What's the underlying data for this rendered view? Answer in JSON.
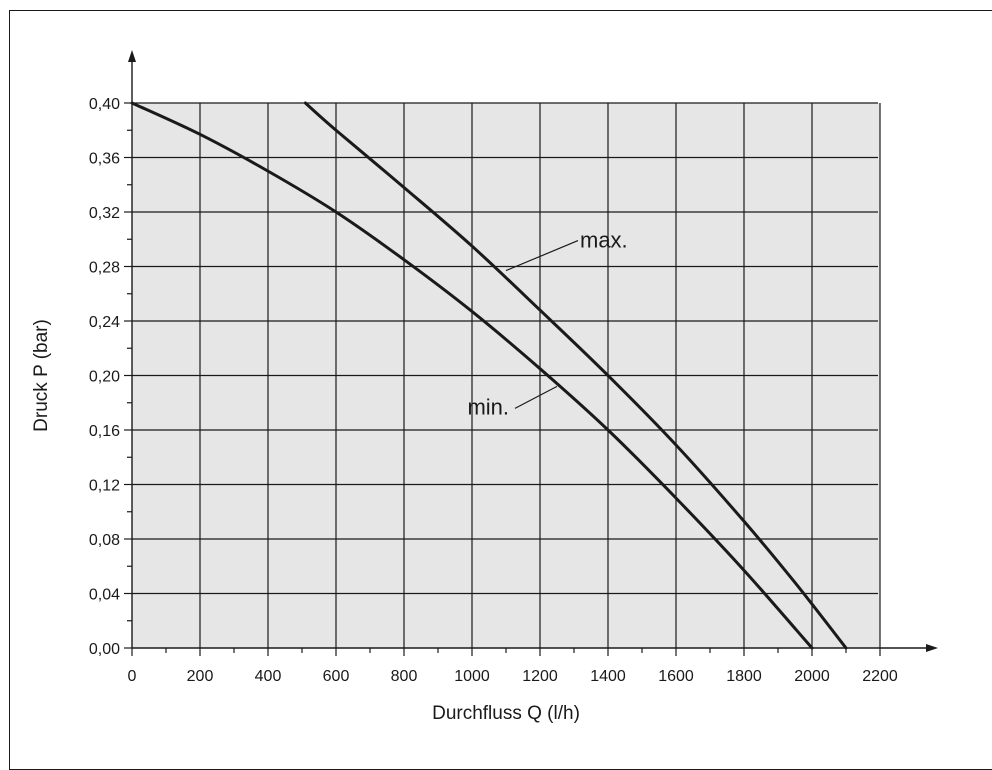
{
  "chart_data": {
    "type": "line",
    "xlabel": "Durchfluss Q (l/h)",
    "ylabel": "Druck P (bar)",
    "xlim": [
      0,
      2200
    ],
    "ylim": [
      0,
      0.4
    ],
    "x_ticks": [
      0,
      200,
      400,
      600,
      800,
      1000,
      1200,
      1400,
      1600,
      1800,
      2000,
      2200
    ],
    "x_tick_labels": [
      "0",
      "200",
      "400",
      "600",
      "800",
      "1000",
      "1200",
      "1400",
      "1600",
      "1800",
      "2000",
      "2200"
    ],
    "y_ticks": [
      0,
      0.04,
      0.08,
      0.12,
      0.16,
      0.2,
      0.24,
      0.28,
      0.32,
      0.36,
      0.4
    ],
    "y_tick_labels": [
      "0,00",
      "0,04",
      "0,08",
      "0,12",
      "0,16",
      "0,20",
      "0,24",
      "0,28",
      "0,32",
      "0,36",
      "0,40"
    ],
    "grid": true,
    "plot_background": "#e6e6e6",
    "line_color": "#1a1a1a",
    "series": [
      {
        "name": "max.",
        "x": [
          510,
          600,
          800,
          1000,
          1200,
          1400,
          1600,
          1800,
          1950,
          2100
        ],
        "y": [
          0.4,
          0.38,
          0.338,
          0.295,
          0.248,
          0.2,
          0.149,
          0.093,
          0.048,
          0.0
        ]
      },
      {
        "name": "min.",
        "x": [
          0,
          200,
          400,
          600,
          800,
          1000,
          1200,
          1400,
          1600,
          1800,
          2000
        ],
        "y": [
          0.4,
          0.377,
          0.35,
          0.32,
          0.285,
          0.247,
          0.205,
          0.16,
          0.11,
          0.057,
          0.0
        ]
      }
    ],
    "annotations": [
      {
        "text": "max.",
        "series": "max.",
        "anchor_x": 1100,
        "anchor_y": 0.277
      },
      {
        "text": "min.",
        "series": "min.",
        "anchor_x": 1250,
        "anchor_y": 0.192
      }
    ]
  }
}
